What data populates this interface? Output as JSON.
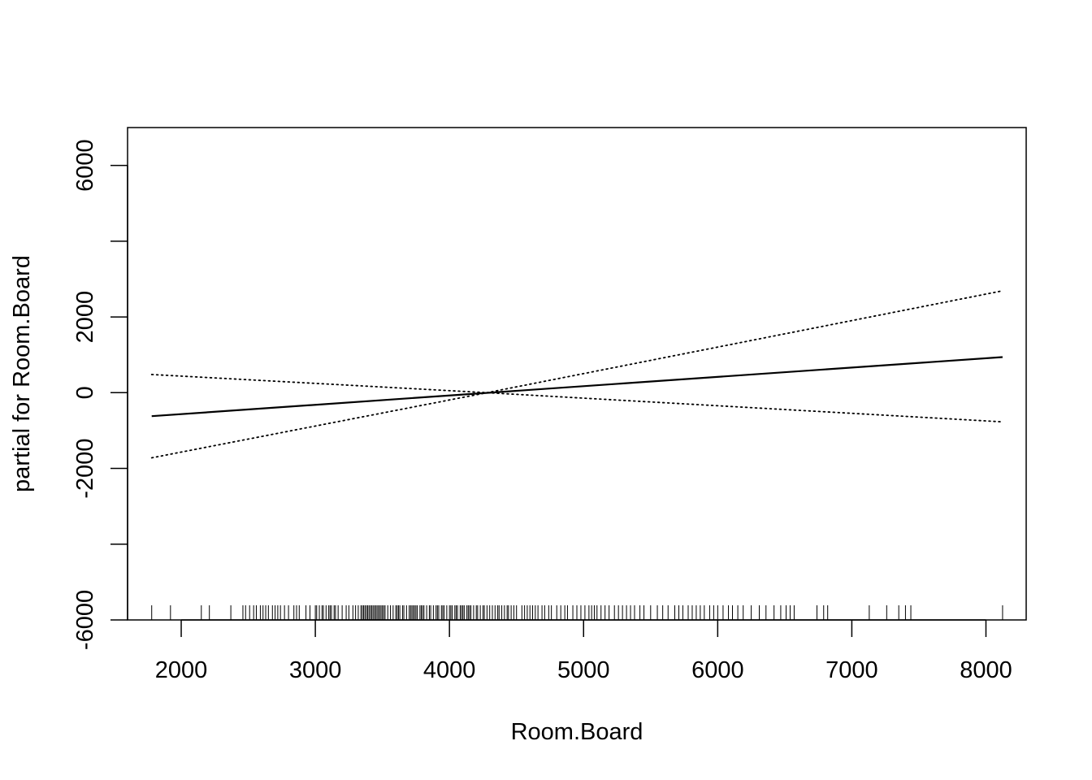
{
  "chart_data": {
    "type": "line",
    "xlabel": "Room.Board",
    "ylabel": "partial for Room.Board",
    "xlim": [
      1600,
      8300
    ],
    "ylim": [
      -6000,
      7000
    ],
    "x_ticks": [
      2000,
      3000,
      4000,
      5000,
      6000,
      7000,
      8000
    ],
    "y_ticks": [
      -6000,
      -4000,
      -2000,
      0,
      2000,
      4000,
      6000
    ],
    "y_tick_labels": [
      "-6000",
      "",
      "-2000",
      "0",
      "2000",
      "",
      "6000"
    ],
    "grid": false,
    "legend": "none",
    "series": [
      {
        "style": "solid",
        "x": [
          1780,
          8124
        ],
        "y": [
          -620,
          940
        ]
      },
      {
        "style": "dotted",
        "x": [
          1780,
          4280,
          8124
        ],
        "y": [
          -1720,
          0,
          2690
        ]
      },
      {
        "style": "dotted",
        "x": [
          1780,
          4280,
          8124
        ],
        "y": [
          480,
          0,
          -770
        ]
      }
    ],
    "rug": [
      1780,
      1920,
      2150,
      2210,
      2370,
      2460,
      2480,
      2510,
      2540,
      2560,
      2590,
      2610,
      2630,
      2650,
      2680,
      2700,
      2720,
      2740,
      2770,
      2800,
      2840,
      2860,
      2880,
      2930,
      2960,
      3000,
      3010,
      3030,
      3050,
      3060,
      3080,
      3100,
      3110,
      3120,
      3140,
      3150,
      3170,
      3200,
      3230,
      3250,
      3280,
      3300,
      3320,
      3340,
      3350,
      3360,
      3370,
      3380,
      3390,
      3400,
      3410,
      3420,
      3430,
      3440,
      3450,
      3460,
      3470,
      3480,
      3490,
      3500,
      3510,
      3520,
      3540,
      3560,
      3580,
      3600,
      3610,
      3620,
      3630,
      3650,
      3660,
      3680,
      3700,
      3710,
      3720,
      3730,
      3740,
      3750,
      3760,
      3780,
      3790,
      3800,
      3810,
      3830,
      3850,
      3860,
      3880,
      3900,
      3910,
      3920,
      3940,
      3950,
      3960,
      3980,
      4000,
      4010,
      4020,
      4040,
      4050,
      4060,
      4080,
      4090,
      4100,
      4110,
      4130,
      4140,
      4150,
      4160,
      4180,
      4200,
      4210,
      4230,
      4250,
      4260,
      4280,
      4300,
      4320,
      4340,
      4360,
      4370,
      4390,
      4410,
      4430,
      4440,
      4460,
      4480,
      4500,
      4540,
      4560,
      4580,
      4600,
      4620,
      4640,
      4660,
      4690,
      4710,
      4740,
      4760,
      4800,
      4830,
      4860,
      4880,
      4920,
      4950,
      4980,
      5010,
      5040,
      5060,
      5080,
      5100,
      5130,
      5160,
      5190,
      5230,
      5260,
      5290,
      5320,
      5350,
      5380,
      5420,
      5450,
      5500,
      5550,
      5590,
      5630,
      5680,
      5710,
      5740,
      5780,
      5810,
      5840,
      5870,
      5900,
      5940,
      5970,
      6000,
      6040,
      6080,
      6110,
      6150,
      6190,
      6250,
      6310,
      6360,
      6420,
      6470,
      6510,
      6540,
      6570,
      6740,
      6790,
      6820,
      7130,
      7260,
      7350,
      7400,
      7440,
      8124
    ]
  }
}
